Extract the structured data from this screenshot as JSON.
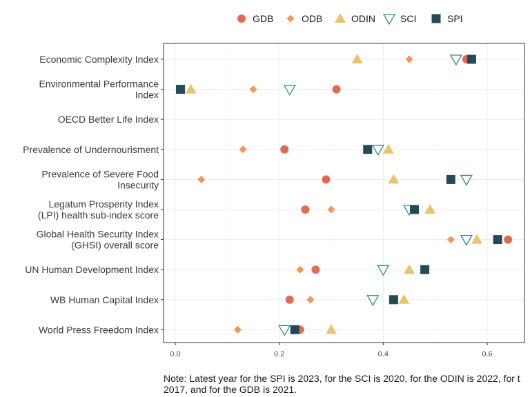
{
  "colors": {
    "GDB": "#e16a55",
    "ODB": "#f0965e",
    "ODIN": "#e8c56b",
    "SCI": "#2a8c86",
    "SPI": "#244a56",
    "grid": "#ebebeb",
    "axis": "#333333"
  },
  "chart_data": {
    "type": "scatter",
    "orientation": "horizontal dot plot",
    "categories": [
      [
        "Economic Complexity Index"
      ],
      [
        "Environmental Performance",
        "Index"
      ],
      [
        "OECD Better Life Index"
      ],
      [
        "Prevalence of Undernourisment"
      ],
      [
        "Prevalence of Severe Food",
        "Insecurity"
      ],
      [
        "Legatum Prosperity Index",
        "(LPI) health sub-index score"
      ],
      [
        "Global Health Security Index",
        "(GHSI) overall score"
      ],
      [
        "UN Human Development Index"
      ],
      [
        "WB Human Capital Index"
      ],
      [
        "World Press Freedom Index"
      ]
    ],
    "xlim": [
      -0.02,
      0.67
    ],
    "x_ticks": [
      "0.0",
      "0.2",
      "0.4",
      "0.6"
    ],
    "x_tick_values": [
      0.0,
      0.2,
      0.4,
      0.6
    ],
    "grid": true,
    "legend_position": "top",
    "series": [
      {
        "name": "GDB",
        "marker": "circle",
        "values": [
          0.56,
          0.31,
          null,
          0.21,
          0.29,
          0.25,
          0.64,
          0.27,
          0.22,
          0.24
        ]
      },
      {
        "name": "ODB",
        "marker": "diamond",
        "values": [
          0.45,
          0.15,
          null,
          0.13,
          0.05,
          0.3,
          0.53,
          0.24,
          0.26,
          0.12
        ]
      },
      {
        "name": "ODIN",
        "marker": "triangle",
        "values": [
          0.35,
          0.03,
          null,
          0.41,
          0.42,
          0.49,
          0.58,
          0.45,
          0.44,
          0.3
        ]
      },
      {
        "name": "SCI",
        "marker": "triangle-down-open",
        "values": [
          0.54,
          0.22,
          null,
          0.39,
          0.56,
          0.45,
          0.56,
          0.4,
          0.38,
          0.21
        ]
      },
      {
        "name": "SPI",
        "marker": "square",
        "values": [
          0.57,
          0.01,
          null,
          0.37,
          0.53,
          0.46,
          0.62,
          0.48,
          0.42,
          0.23
        ]
      }
    ]
  },
  "note": {
    "line1": "Note: Latest year for the SPI is 2023, for the SCI is 2020, for the ODIN is 2022, for t",
    "line2": "2017, and for the GDB is 2021."
  }
}
